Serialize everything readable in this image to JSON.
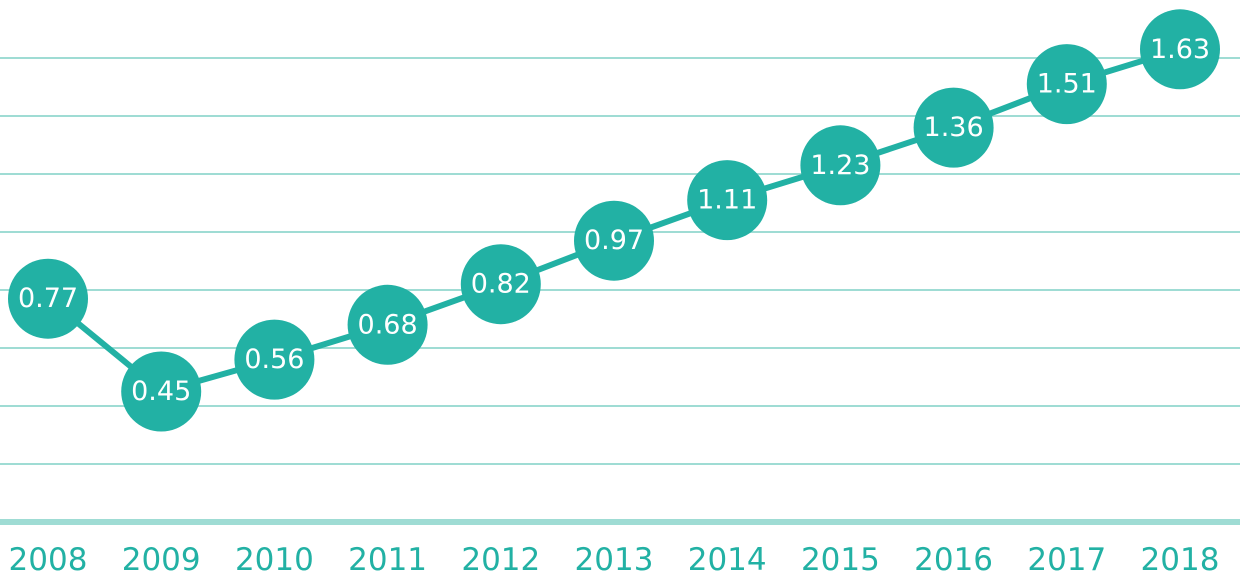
{
  "chart_data": {
    "type": "line",
    "title": "",
    "xlabel": "",
    "ylabel": "",
    "categories": [
      "2008",
      "2009",
      "2010",
      "2011",
      "2012",
      "2013",
      "2014",
      "2015",
      "2016",
      "2017",
      "2018"
    ],
    "series": [
      {
        "values": [
          0.77,
          0.45,
          0.56,
          0.68,
          0.82,
          0.97,
          1.11,
          1.23,
          1.36,
          1.51,
          1.63
        ]
      }
    ],
    "data_labels": [
      "0.77",
      "0.45",
      "0.56",
      "0.68",
      "0.82",
      "0.97",
      "1.11",
      "1.23",
      "1.36",
      "1.51",
      "1.63"
    ],
    "ylim": [
      0.0,
      1.8
    ],
    "grid": true,
    "y_tick_labels_shown": false,
    "colors": {
      "series": "#22b1a4",
      "grid": "#9fdcd4",
      "label_text": "#ffffff",
      "tick_text": "#22b1a4"
    }
  }
}
